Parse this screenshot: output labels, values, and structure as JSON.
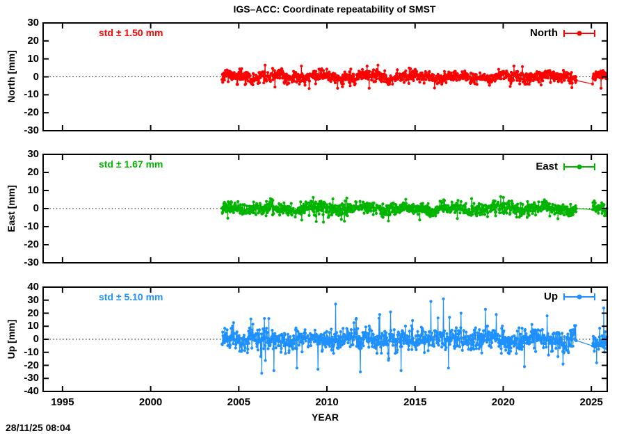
{
  "footer": {
    "timestamp": "28/11/25 08:04"
  },
  "chart_data": {
    "type": "scatter",
    "title": "IGS–ACC: Coordinate repeatability of SMST",
    "station": "SMST",
    "xlabel": "YEAR",
    "x_range": [
      1993.9,
      2025.9
    ],
    "x_ticks": [
      1995,
      2000,
      2005,
      2010,
      2015,
      2020,
      2025
    ],
    "grid": "dotted-zero-line-only",
    "legend_position": "top-right-inside",
    "marker_style": "filled-dot-with-errorbar",
    "coverage": {
      "data_start": 2004.05,
      "gap": [
        2024.15,
        2025.05
      ],
      "data_end": 2025.88
    },
    "panels": [
      {
        "name": "North",
        "ylabel": "North [mm]",
        "std_label": "std ± 1.50 mm",
        "std_mm": 1.5,
        "color": "#ff0000",
        "ylim": [
          -30,
          30
        ],
        "y_ticks": [
          30,
          20,
          10,
          0,
          -10,
          -20,
          -30
        ],
        "band": {
          "sigma": 1.6,
          "clip": 4.8,
          "wiggle": 0.9,
          "outlier_rate": 0.012,
          "outlier_extra": 1.8
        },
        "gap_line": {
          "from": -2,
          "to": -4
        },
        "spikes": [
          [
            2006.5,
            6.5
          ],
          [
            2009.0,
            -6.5
          ],
          [
            2012.9,
            6.5
          ],
          [
            2016.1,
            -6.2
          ],
          [
            2020.6,
            6.0
          ],
          [
            2023.9,
            -6.0
          ]
        ]
      },
      {
        "name": "East",
        "ylabel": "East [mm]",
        "std_label": "std ± 1.67 mm",
        "std_mm": 1.67,
        "color": "#00b400",
        "ylim": [
          -30,
          30
        ],
        "y_ticks": [
          30,
          20,
          10,
          0,
          -10,
          -20,
          -30
        ],
        "band": {
          "sigma": 1.7,
          "clip": 5.0,
          "wiggle": 0.9,
          "outlier_rate": 0.012,
          "outlier_extra": 2.0
        },
        "gap_line": {
          "from": 0,
          "to": -0.5
        },
        "spikes": [
          [
            2006.8,
            5.5
          ],
          [
            2009.4,
            -7.2
          ],
          [
            2009.8,
            -7.5
          ],
          [
            2011.0,
            -7.0
          ],
          [
            2013.5,
            -6.8
          ],
          [
            2018.2,
            5.5
          ]
        ]
      },
      {
        "name": "Up",
        "ylabel": "Up [mm]",
        "std_label": "std ± 5.10 mm",
        "std_mm": 5.1,
        "color": "#1e90ff",
        "ylim": [
          -40,
          40
        ],
        "y_ticks": [
          40,
          30,
          20,
          10,
          0,
          -10,
          -20,
          -30,
          -40
        ],
        "band": {
          "sigma": 4.2,
          "clip": 11.0,
          "wiggle": 1.5,
          "outlier_rate": 0.025,
          "outlier_extra": 6.0
        },
        "gap_line": {
          "from": -1,
          "to": -5
        },
        "spikes": [
          [
            2006.3,
            -26
          ],
          [
            2007.0,
            -24
          ],
          [
            2008.3,
            -22
          ],
          [
            2009.5,
            -23
          ],
          [
            2010.5,
            27
          ],
          [
            2011.9,
            -25
          ],
          [
            2013.0,
            19
          ],
          [
            2013.6,
            21
          ],
          [
            2014.2,
            -24
          ],
          [
            2015.9,
            29
          ],
          [
            2016.6,
            31
          ],
          [
            2016.9,
            -22
          ],
          [
            2017.6,
            20
          ],
          [
            2019.0,
            23
          ],
          [
            2019.6,
            19
          ],
          [
            2021.2,
            -21
          ],
          [
            2022.5,
            18
          ],
          [
            2023.4,
            -19
          ],
          [
            2025.3,
            -18
          ],
          [
            2025.7,
            24
          ]
        ]
      }
    ]
  }
}
